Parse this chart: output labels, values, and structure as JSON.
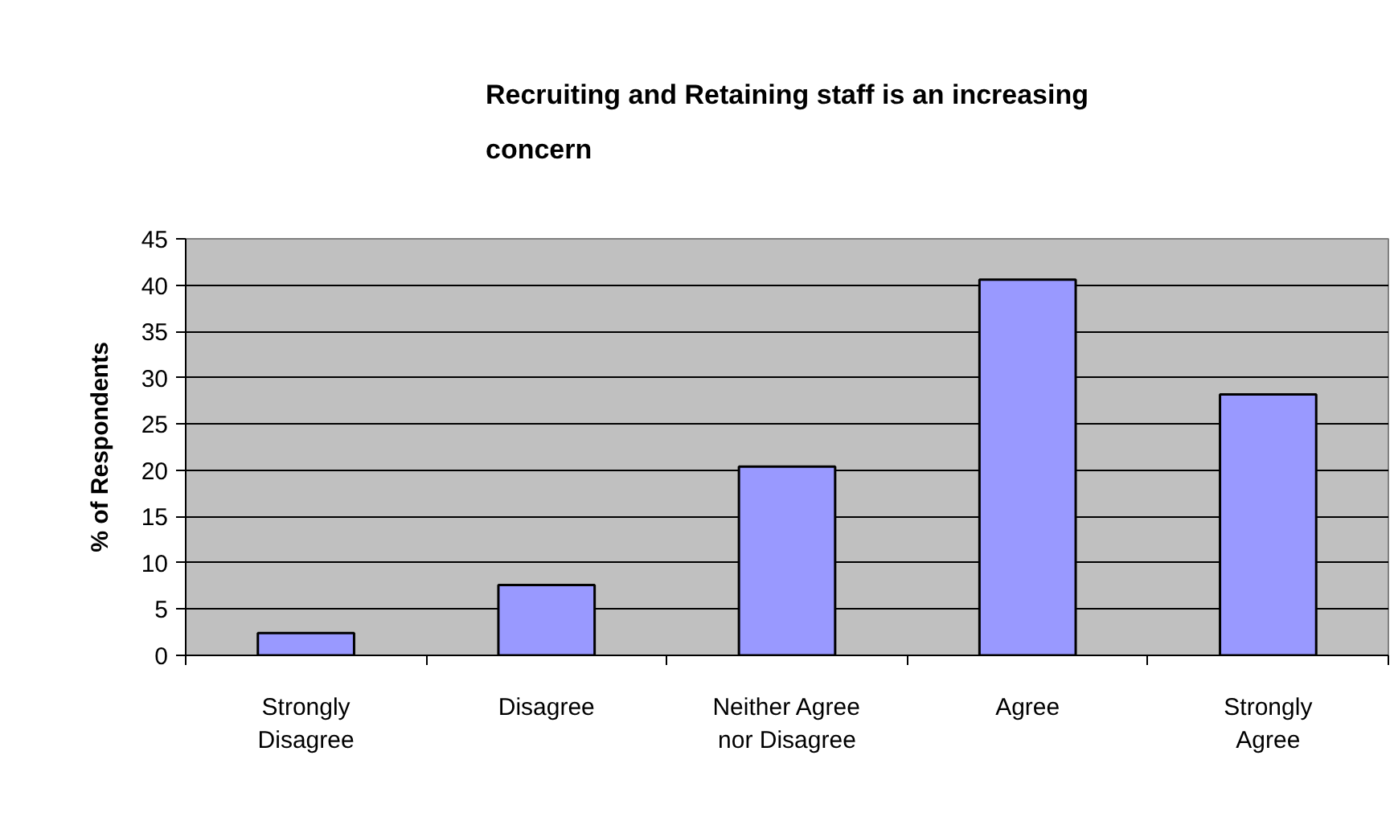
{
  "chart_data": {
    "type": "bar",
    "title": "Recruiting and Retaining staff is an increasing concern",
    "ylabel": "% of Respondents",
    "categories": [
      "Strongly Disagree",
      "Disagree",
      "Neither Agree nor Disagree",
      "Agree",
      "Strongly Agree"
    ],
    "values": [
      2.4,
      7.6,
      20.4,
      40.6,
      28.2
    ],
    "color": "#9999ff",
    "ylim": [
      0,
      45
    ],
    "yticks": [
      0,
      5,
      10,
      15,
      20,
      25,
      30,
      35,
      40,
      45
    ],
    "grid": "y"
  }
}
